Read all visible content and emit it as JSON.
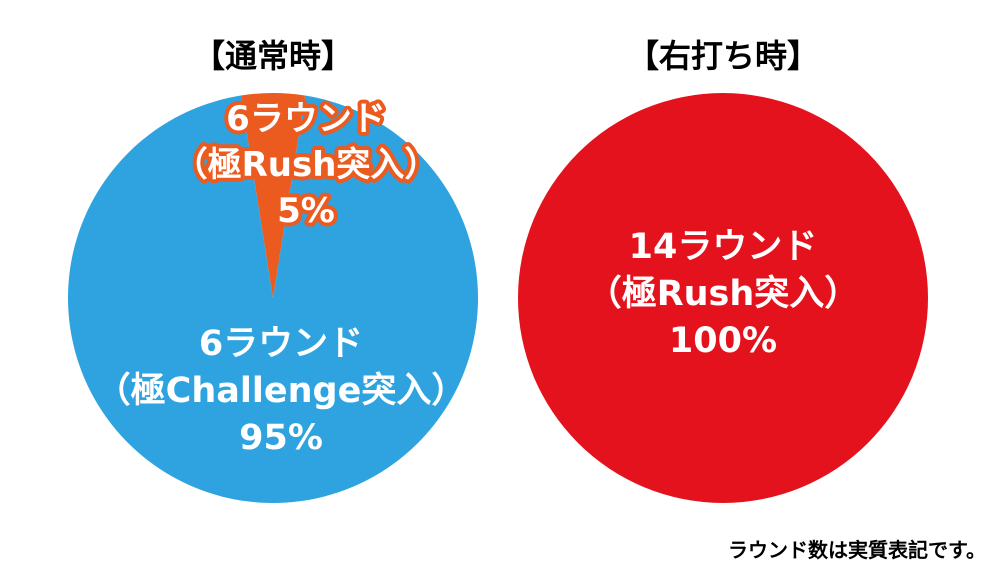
{
  "footnote": "ラウンド数は実質表記です。",
  "colors": {
    "blue": "#2ea3df",
    "orange": "#eb5a1e",
    "red": "#e3121c"
  },
  "chart_data": [
    {
      "type": "pie",
      "title": "【通常時】",
      "slices": [
        {
          "lines": [
            "6ラウンド",
            "（極Rush突入）",
            "5%"
          ],
          "value": 5,
          "color": "#eb5a1e"
        },
        {
          "lines": [
            "6ラウンド",
            "（極Challenge突入）",
            "95%"
          ],
          "value": 95,
          "color": "#2ea3df"
        }
      ]
    },
    {
      "type": "pie",
      "title": "【右打ち時】",
      "slices": [
        {
          "lines": [
            "14ラウンド",
            "（極Rush突入）",
            "100%"
          ],
          "value": 100,
          "color": "#e3121c"
        }
      ]
    }
  ]
}
